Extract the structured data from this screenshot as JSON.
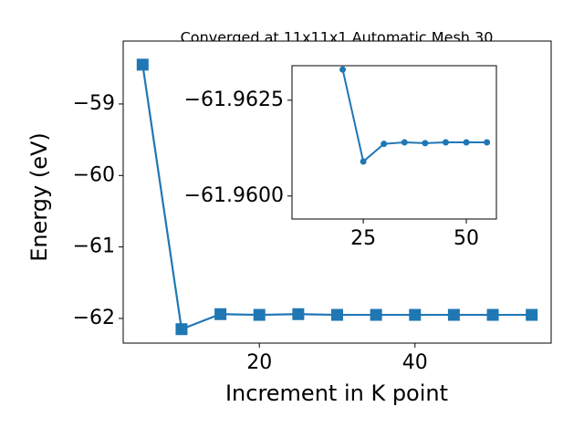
{
  "chart_data": [
    {
      "type": "line",
      "title": "Converged at 11x11x1 Automatic Mesh 30",
      "x_label": "Increment in K point",
      "y_label": "Energy (eV)",
      "x": [
        5,
        10,
        15,
        20,
        25,
        30,
        35,
        40,
        45,
        50,
        55
      ],
      "series": [
        {
          "color": "#1f77b4",
          "marker": "square",
          "values": [
            -58.45,
            -62.15,
            -61.94,
            -61.95,
            -61.94,
            -61.95,
            -61.95,
            -61.95,
            -61.95,
            -61.95,
            -61.95
          ]
        }
      ],
      "xlim": [
        2.5,
        57.5
      ],
      "xticks": [
        20,
        40
      ],
      "ylim": [
        -62.345,
        -58.12
      ],
      "yticks": [
        {
          "value": -62,
          "label": "−62"
        },
        {
          "value": -61,
          "label": "−61"
        },
        {
          "value": -60,
          "label": "−60"
        },
        {
          "value": -59,
          "label": "−59"
        }
      ]
    },
    {
      "type": "line",
      "x": [
        20,
        25,
        30,
        35,
        40,
        45,
        50,
        55
      ],
      "series": [
        {
          "color": "#1f77b4",
          "marker": "circle",
          "values": [
            -61.9633,
            -61.9609,
            -61.96136,
            -61.9614,
            -61.96138,
            -61.9614,
            -61.9614,
            -61.9614
          ]
        }
      ],
      "xlim": [
        7.7,
        57.3
      ],
      "xticks": [
        25,
        50
      ],
      "ylim": [
        -61.9594,
        -61.9634
      ],
      "yticks": [
        {
          "value": -61.96,
          "label": "−61.9600"
        },
        {
          "value": -61.9625,
          "label": "−61.9625"
        }
      ]
    }
  ]
}
